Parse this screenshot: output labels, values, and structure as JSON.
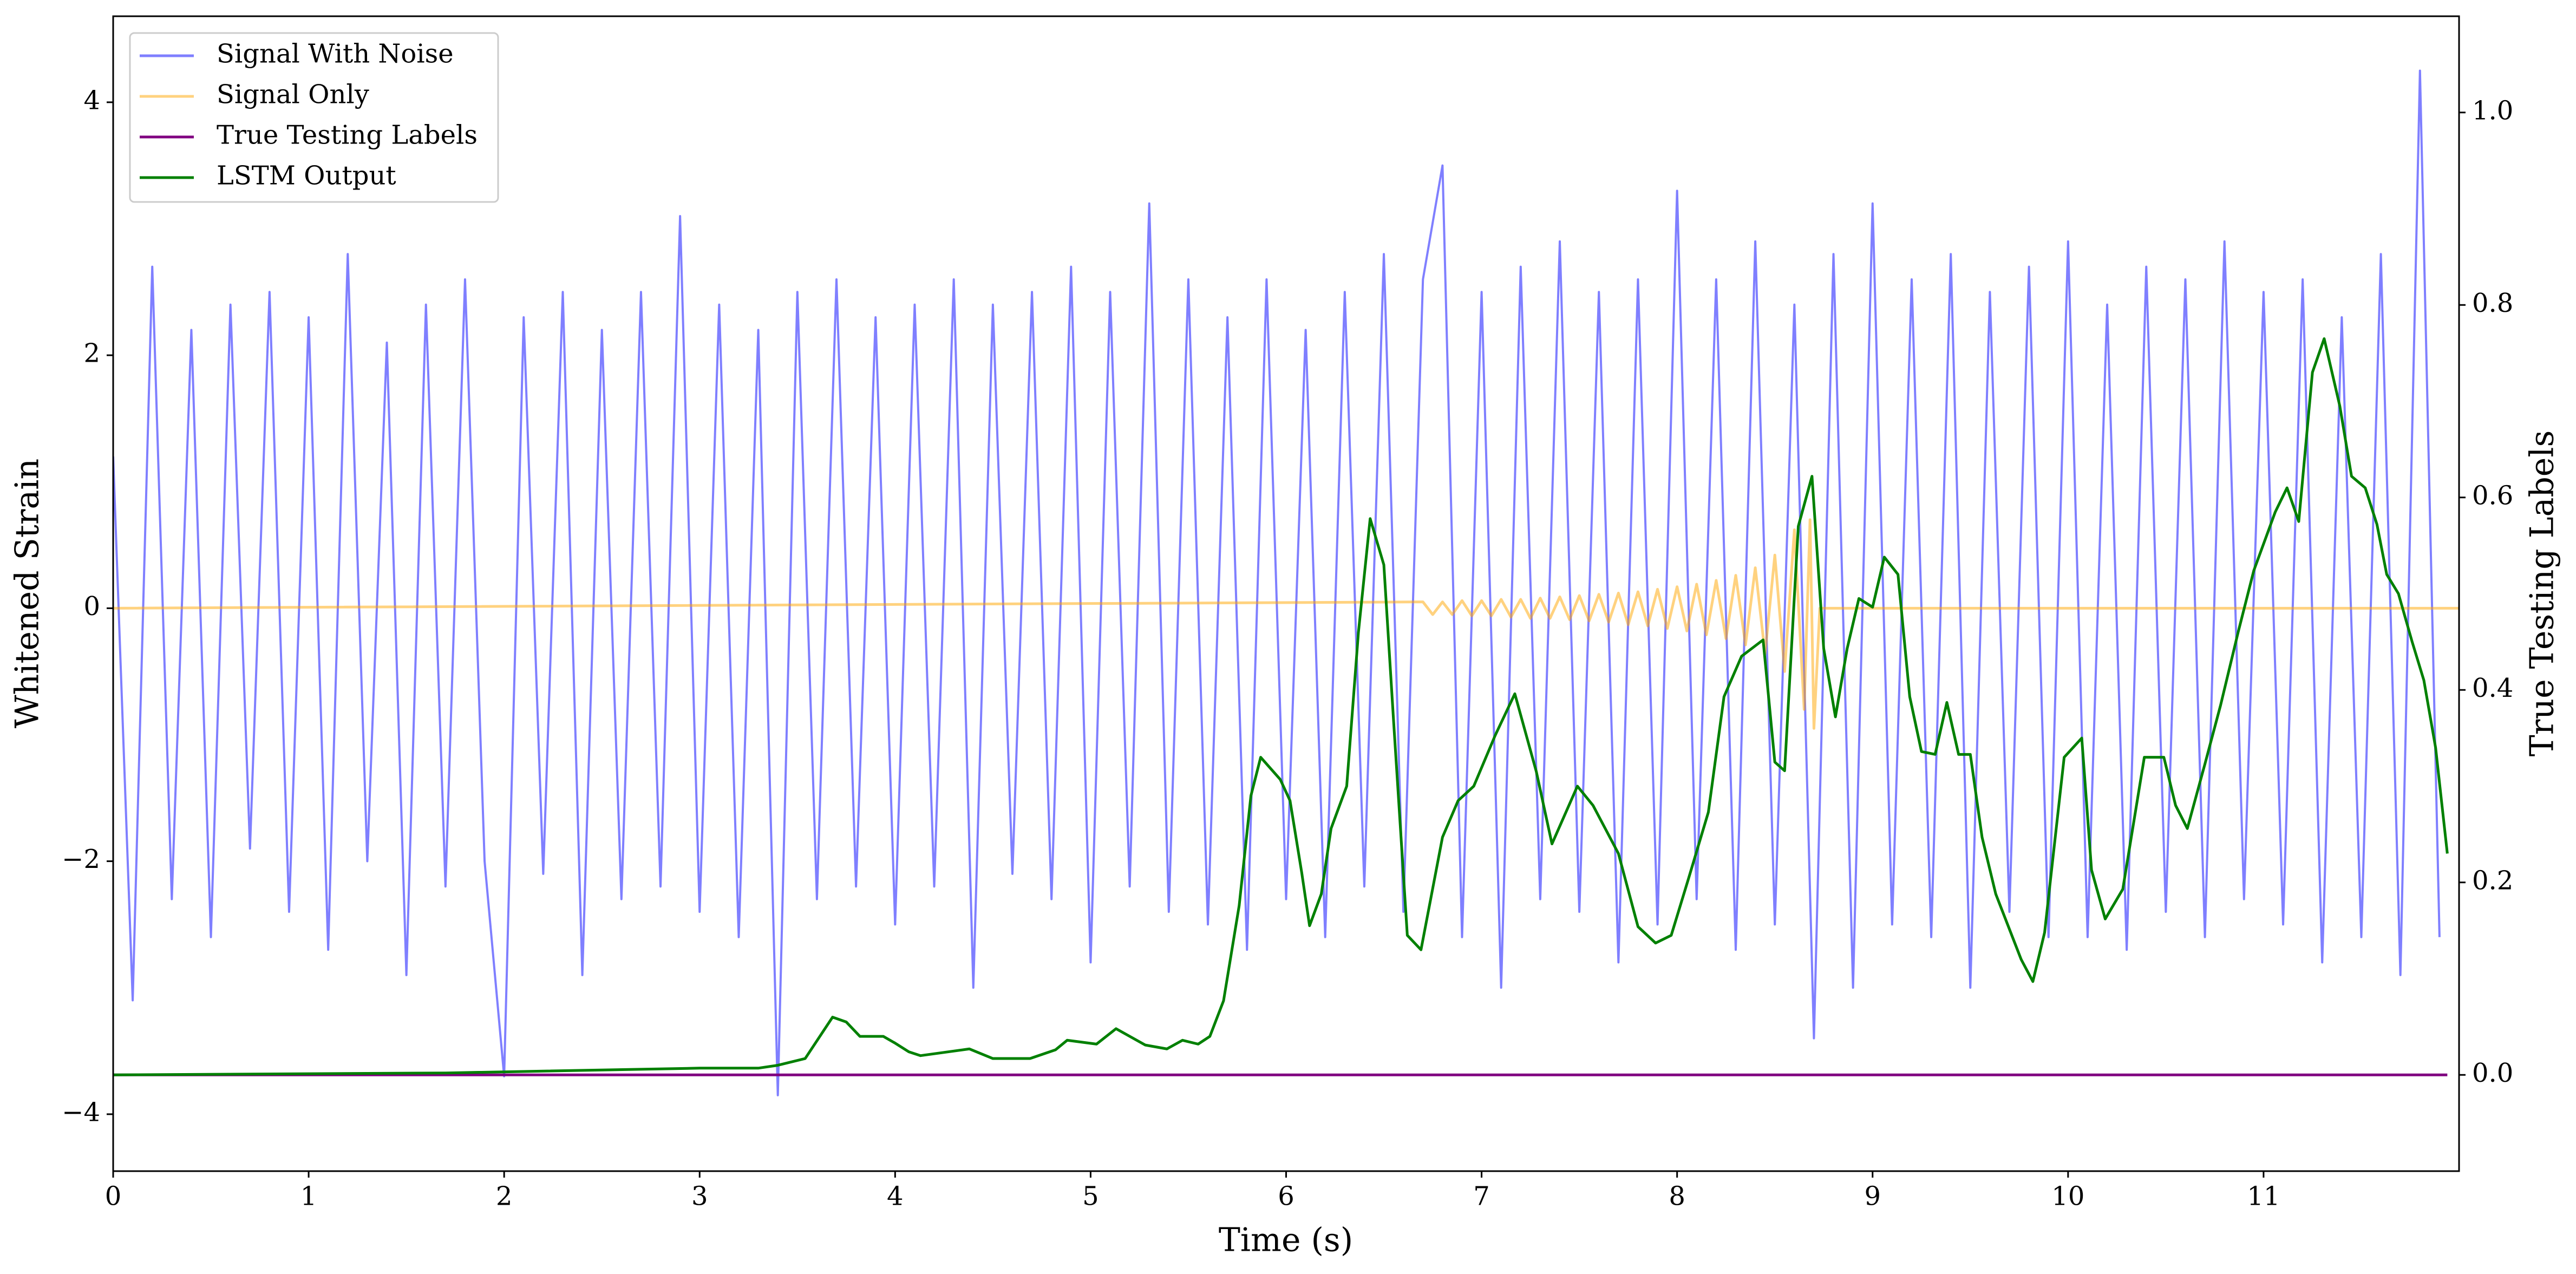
{
  "chart_data": {
    "type": "line",
    "xlabel": "Time (s)",
    "ylabel": "Whitened Strain",
    "y2label": "True Testing Labels",
    "xlim": [
      0,
      12
    ],
    "xticks": [
      0,
      1,
      2,
      3,
      4,
      5,
      6,
      7,
      8,
      9,
      10,
      11
    ],
    "ylim": [
      -4.45,
      4.68
    ],
    "yticks": [
      {
        "value": -4,
        "label": "−4"
      },
      {
        "value": -2,
        "label": "−2"
      },
      0,
      2,
      4
    ],
    "y2lim": [
      -0.1,
      1.1
    ],
    "y2ticks": [
      {
        "value": 0,
        "label": "0.0"
      },
      0.2,
      0.4,
      0.6,
      0.8,
      {
        "value": 1,
        "label": "1.0"
      }
    ],
    "legend": "upper left",
    "series": [
      {
        "name": "Signal With Noise",
        "color": "#0000ff",
        "opacity": 0.5,
        "x": [
          0,
          0.1,
          0.2,
          0.3,
          0.4,
          0.5,
          0.6,
          0.7,
          0.8,
          0.9,
          1,
          1.1,
          1.2,
          1.3,
          1.4,
          1.5,
          1.6,
          1.7,
          1.8,
          1.9,
          2,
          2.1,
          2.2,
          2.3,
          2.4,
          2.5,
          2.6,
          2.7,
          2.8,
          2.9,
          3,
          3.1,
          3.2,
          3.3,
          3.4,
          3.5,
          3.6,
          3.7,
          3.8,
          3.9,
          4,
          4.1,
          4.2,
          4.3,
          4.4,
          4.5,
          4.6,
          4.7,
          4.8,
          4.9,
          5,
          5.1,
          5.2,
          5.3,
          5.4,
          5.5,
          5.6,
          5.7,
          5.8,
          5.9,
          6,
          6.1,
          6.2,
          6.3,
          6.4,
          6.5,
          6.6,
          6.7,
          6.8,
          6.9,
          7,
          7.1,
          7.2,
          7.3,
          7.4,
          7.5,
          7.6,
          7.7,
          7.8,
          7.9,
          8,
          8.1,
          8.2,
          8.3,
          8.4,
          8.5,
          8.6,
          8.7,
          8.8,
          8.9,
          9,
          9.1,
          9.2,
          9.3,
          9.4,
          9.5,
          9.6,
          9.7,
          9.8,
          9.9,
          10,
          10.1,
          10.2,
          10.3,
          10.4,
          10.5,
          10.6,
          10.7,
          10.8,
          10.9,
          11,
          11.1,
          11.2,
          11.3,
          11.4,
          11.5,
          11.6,
          11.7,
          11.8,
          11.9
        ],
        "values": [
          1.2,
          -3.1,
          2.7,
          -2.3,
          2.2,
          -2.6,
          2.4,
          -1.9,
          2.5,
          -2.4,
          2.3,
          -2.7,
          2.8,
          -2.0,
          2.1,
          -2.9,
          2.4,
          -2.2,
          2.6,
          -2.0,
          -3.7,
          2.3,
          -2.1,
          2.5,
          -2.9,
          2.2,
          -2.3,
          2.5,
          -2.2,
          3.1,
          -2.4,
          2.4,
          -2.6,
          2.2,
          -3.85,
          2.5,
          -2.3,
          2.6,
          -2.2,
          2.3,
          -2.5,
          2.4,
          -2.2,
          2.6,
          -3.0,
          2.4,
          -2.1,
          2.5,
          -2.3,
          2.7,
          -2.8,
          2.5,
          -2.2,
          3.2,
          -2.4,
          2.6,
          -2.5,
          2.3,
          -2.7,
          2.6,
          -2.3,
          2.2,
          -2.6,
          2.5,
          -2.2,
          2.8,
          -2.4,
          2.6,
          3.5,
          -2.6,
          2.5,
          -3.0,
          2.7,
          -2.3,
          2.9,
          -2.4,
          2.5,
          -2.8,
          2.6,
          -2.5,
          3.3,
          -2.3,
          2.6,
          -2.7,
          2.9,
          -2.5,
          2.4,
          -3.4,
          2.8,
          -3.0,
          3.2,
          -2.5,
          2.6,
          -2.6,
          2.8,
          -3.0,
          2.5,
          -2.4,
          2.7,
          -2.6,
          2.9,
          -2.6,
          2.4,
          -2.7,
          2.7,
          -2.4,
          2.6,
          -2.6,
          2.9,
          -2.3,
          2.5,
          -2.5,
          2.6,
          -2.8,
          2.3,
          -2.6,
          2.8,
          -2.9,
          4.25,
          -2.6
        ]
      },
      {
        "name": "Signal Only",
        "color": "#ffa500",
        "opacity": 0.5,
        "x": [
          0,
          6.7,
          6.75,
          6.8,
          6.85,
          6.9,
          6.95,
          7,
          7.05,
          7.1,
          7.15,
          7.2,
          7.25,
          7.3,
          7.35,
          7.4,
          7.45,
          7.5,
          7.55,
          7.6,
          7.65,
          7.7,
          7.75,
          7.8,
          7.85,
          7.9,
          7.95,
          8,
          8.05,
          8.1,
          8.15,
          8.2,
          8.25,
          8.3,
          8.35,
          8.4,
          8.45,
          8.5,
          8.55,
          8.6,
          8.65,
          8.68,
          8.7,
          8.73,
          12
        ],
        "values": [
          0,
          0.05,
          -0.05,
          0.05,
          -0.05,
          0.06,
          -0.06,
          0.06,
          -0.06,
          0.07,
          -0.07,
          0.07,
          -0.08,
          0.08,
          -0.08,
          0.09,
          -0.09,
          0.1,
          -0.1,
          0.11,
          -0.11,
          0.12,
          -0.13,
          0.13,
          -0.14,
          0.15,
          -0.16,
          0.17,
          -0.18,
          0.19,
          -0.21,
          0.22,
          -0.24,
          0.26,
          -0.29,
          0.32,
          -0.36,
          0.42,
          -0.5,
          0.62,
          -0.8,
          0.7,
          -0.95,
          0,
          0
        ]
      },
      {
        "name": "True Testing Labels",
        "color": "#800080",
        "axis": "y2",
        "x": [
          0,
          11.94
        ],
        "values": [
          0,
          0
        ]
      },
      {
        "name": "LSTM Output",
        "color": "#008000",
        "axis": "y2",
        "x": [
          0,
          1.7,
          3,
          3.3,
          3.4,
          3.54,
          3.68,
          3.75,
          3.82,
          3.94,
          4,
          4.07,
          4.13,
          4.38,
          4.5,
          4.69,
          4.82,
          4.88,
          5.03,
          5.13,
          5.28,
          5.39,
          5.47,
          5.55,
          5.61,
          5.68,
          5.76,
          5.82,
          5.87,
          5.97,
          6.02,
          6.08,
          6.12,
          6.18,
          6.23,
          6.31,
          6.37,
          6.43,
          6.5,
          6.55,
          6.62,
          6.69,
          6.8,
          6.88,
          6.96,
          7.07,
          7.17,
          7.28,
          7.36,
          7.49,
          7.57,
          7.7,
          7.8,
          7.89,
          7.97,
          8.06,
          8.16,
          8.24,
          8.33,
          8.44,
          8.5,
          8.55,
          8.62,
          8.69,
          8.75,
          8.81,
          8.87,
          8.93,
          9,
          9.06,
          9.13,
          9.19,
          9.25,
          9.32,
          9.38,
          9.44,
          9.5,
          9.56,
          9.63,
          9.76,
          9.82,
          9.88,
          9.98,
          10.07,
          10.12,
          10.19,
          10.28,
          10.39,
          10.49,
          10.55,
          10.61,
          10.7,
          10.78,
          10.87,
          10.95,
          11.06,
          11.12,
          11.18,
          11.25,
          11.31,
          11.39,
          11.45,
          11.52,
          11.58,
          11.63,
          11.69,
          11.76,
          11.82,
          11.88,
          11.94
        ],
        "values": [
          0,
          0.002,
          0.007,
          0.007,
          0.01,
          0.017,
          0.06,
          0.055,
          0.04,
          0.04,
          0.033,
          0.024,
          0.02,
          0.027,
          0.017,
          0.017,
          0.026,
          0.036,
          0.032,
          0.048,
          0.031,
          0.027,
          0.036,
          0.032,
          0.04,
          0.077,
          0.176,
          0.29,
          0.33,
          0.307,
          0.285,
          0.21,
          0.155,
          0.188,
          0.256,
          0.3,
          0.46,
          0.578,
          0.53,
          0.367,
          0.145,
          0.13,
          0.247,
          0.285,
          0.3,
          0.353,
          0.396,
          0.315,
          0.24,
          0.3,
          0.28,
          0.23,
          0.154,
          0.137,
          0.145,
          0.205,
          0.273,
          0.393,
          0.435,
          0.452,
          0.325,
          0.316,
          0.57,
          0.622,
          0.443,
          0.372,
          0.443,
          0.495,
          0.486,
          0.538,
          0.52,
          0.393,
          0.336,
          0.333,
          0.387,
          0.333,
          0.333,
          0.247,
          0.188,
          0.12,
          0.097,
          0.148,
          0.33,
          0.35,
          0.213,
          0.162,
          0.193,
          0.33,
          0.33,
          0.28,
          0.256,
          0.323,
          0.384,
          0.46,
          0.524,
          0.585,
          0.61,
          0.575,
          0.73,
          0.765,
          0.695,
          0.622,
          0.61,
          0.572,
          0.52,
          0.5,
          0.45,
          0.41,
          0.34,
          0.23
        ]
      }
    ]
  }
}
